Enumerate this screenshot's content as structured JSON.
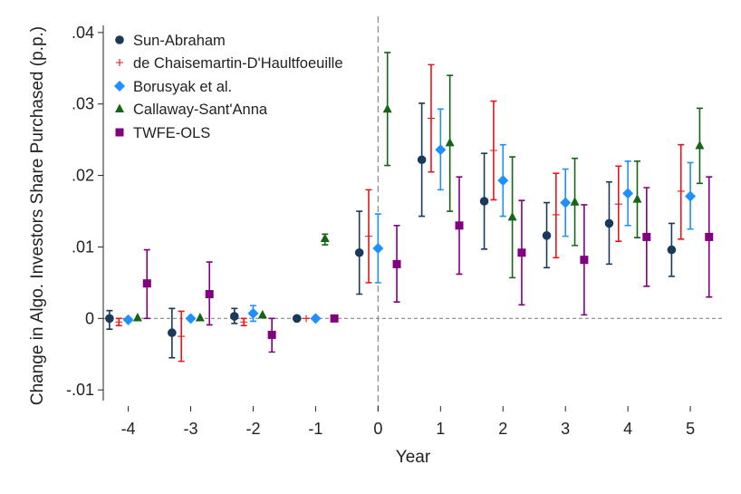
{
  "chart_data": {
    "type": "scatter",
    "subtype": "event-study coefficients with 95% confidence intervals",
    "title": "",
    "xlabel": "Year",
    "ylabel": "Change in Algo. Investors Share Purchased (p.p.)",
    "x_ticks": [
      -4,
      -3,
      -2,
      -1,
      0,
      1,
      2,
      3,
      4,
      5
    ],
    "y_ticks": [
      -0.01,
      0,
      0.01,
      0.02,
      0.03,
      0.04
    ],
    "y_tick_labels": [
      "-.01",
      "0",
      ".01",
      ".02",
      ".03",
      ".04"
    ],
    "xlim": [
      -4.4,
      5.55
    ],
    "ylim": [
      -0.0115,
      0.041
    ],
    "reference_lines": {
      "horizontal_y": 0,
      "vertical_x": 0,
      "style": "dashed"
    },
    "legend_position": "top-left",
    "series": [
      {
        "name": "Sun-Abraham",
        "marker": "circle",
        "color": "#1a3a5c",
        "offset": -0.3,
        "x": [
          -4,
          -3,
          -2,
          -1,
          0,
          1,
          2,
          3,
          4,
          5
        ],
        "y": [
          0.0,
          -0.002,
          0.0003,
          0.0,
          0.0092,
          0.0222,
          0.0164,
          0.0116,
          0.0133,
          0.0096
        ],
        "lo": [
          -0.0015,
          -0.0055,
          -0.0007,
          null,
          0.0034,
          0.0143,
          0.0097,
          0.0071,
          0.0076,
          0.0059
        ],
        "hi": [
          0.0011,
          0.0014,
          0.0014,
          null,
          0.015,
          0.0301,
          0.0231,
          0.0162,
          0.0191,
          0.0133
        ]
      },
      {
        "name": "de Chaisemartin-D'Haultfoeuille",
        "marker": "plus",
        "color": "#e8151b",
        "offset": -0.15,
        "x": [
          -4,
          -3,
          -2,
          -1,
          0,
          1,
          2,
          3,
          4,
          5
        ],
        "y": [
          -0.0005,
          -0.0025,
          -0.0005,
          0.0,
          0.0115,
          0.028,
          0.0235,
          0.0145,
          0.016,
          0.0178
        ],
        "lo": [
          -0.001,
          -0.006,
          -0.001,
          null,
          0.005,
          0.0205,
          0.0166,
          0.0085,
          0.0108,
          0.0111
        ],
        "hi": [
          0.0,
          0.001,
          0.0,
          null,
          0.018,
          0.0355,
          0.0304,
          0.0203,
          0.0213,
          0.0243
        ]
      },
      {
        "name": "Borusyak et al.",
        "marker": "diamond",
        "color": "#1e90ff",
        "offset": 0.0,
        "x": [
          -4,
          -3,
          -2,
          -1,
          0,
          1,
          2,
          3,
          4,
          5
        ],
        "y": [
          -0.0002,
          0.0,
          0.0007,
          0.0,
          0.0098,
          0.0236,
          0.0193,
          0.0162,
          0.0175,
          0.0171
        ],
        "lo": [
          null,
          null,
          -0.0004,
          null,
          0.005,
          0.018,
          0.0143,
          0.0115,
          0.013,
          0.0125
        ],
        "hi": [
          null,
          null,
          0.0018,
          null,
          0.0146,
          0.0293,
          0.0243,
          0.0209,
          0.022,
          0.0218
        ]
      },
      {
        "name": "Callaway-Sant'Anna",
        "marker": "triangle",
        "color": "#176317",
        "offset": 0.15,
        "x": [
          -4,
          -3,
          -2,
          -1,
          0,
          1,
          2,
          3,
          4,
          5
        ],
        "y": [
          0.0001,
          0.0001,
          0.0005,
          null,
          0.0293,
          0.0246,
          0.0142,
          0.0163,
          0.0167,
          0.0242
        ],
        "lo": [
          null,
          null,
          null,
          null,
          0.0214,
          0.015,
          0.0057,
          0.0102,
          0.0113,
          0.0189
        ],
        "hi": [
          null,
          null,
          null,
          null,
          0.0372,
          0.034,
          0.0226,
          0.0224,
          0.022,
          0.0294
        ],
        "extra_points": [
          {
            "x": -1,
            "y": 0.0112,
            "lo": 0.0103,
            "hi": 0.0118
          }
        ]
      },
      {
        "name": "TWFE-OLS",
        "marker": "square",
        "color": "#800080",
        "offset": 0.3,
        "x": [
          -4,
          -3,
          -2,
          -1,
          0,
          1,
          2,
          3,
          4,
          5
        ],
        "y": [
          0.0049,
          0.0034,
          -0.0023,
          0.0,
          0.0076,
          0.013,
          0.0092,
          0.0082,
          0.0114,
          0.0114
        ],
        "lo": [
          0.0,
          -0.0009,
          -0.0047,
          null,
          0.0023,
          0.0062,
          0.0019,
          0.0005,
          0.0045,
          0.003
        ],
        "hi": [
          0.0096,
          0.0079,
          0.0,
          null,
          0.013,
          0.0198,
          0.0165,
          0.0159,
          0.0183,
          0.0198
        ]
      }
    ]
  }
}
